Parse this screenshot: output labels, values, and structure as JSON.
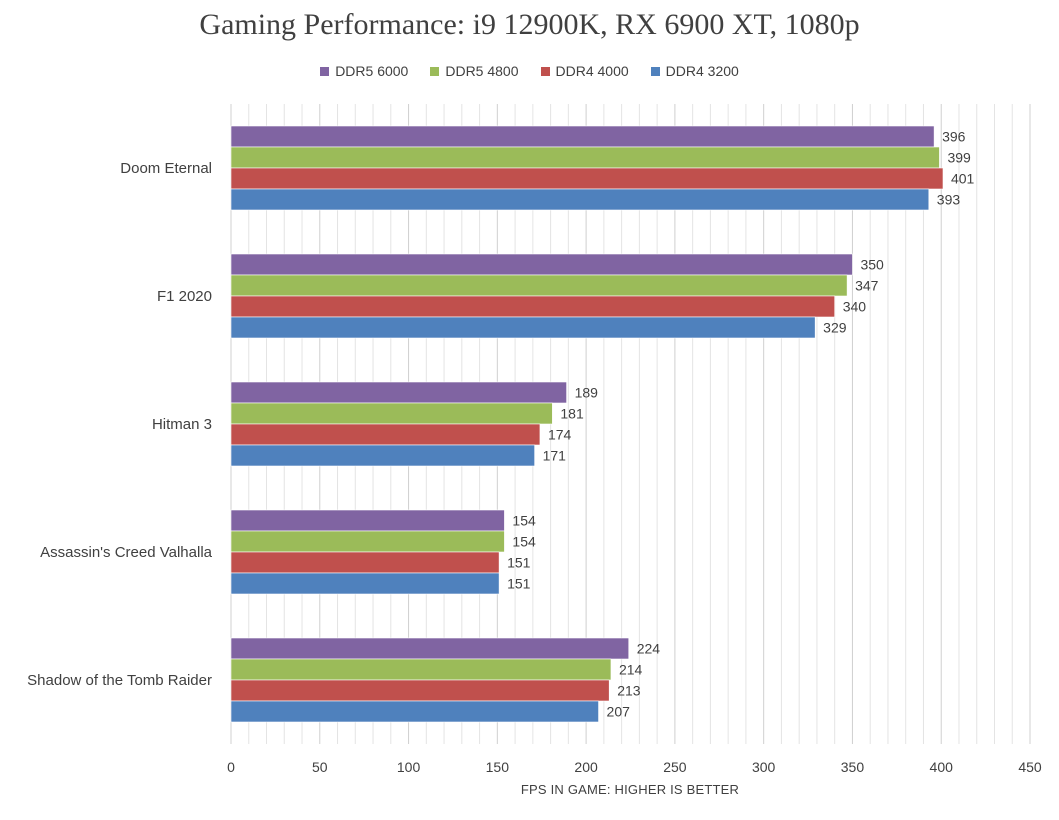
{
  "chart_data": {
    "type": "bar",
    "orientation": "horizontal",
    "title": "Gaming Performance: i9 12900K, RX 6900 XT, 1080p",
    "xlabel": "FPS IN GAME: HIGHER IS BETTER",
    "ylabel": "",
    "xlim": [
      0,
      450
    ],
    "xticks": [
      0,
      50,
      100,
      150,
      200,
      250,
      300,
      350,
      400,
      450
    ],
    "grid": true,
    "legend_position": "top",
    "categories": [
      "Doom Eternal",
      "F1 2020",
      "Hitman 3",
      "Assassin's Creed Valhalla",
      "Shadow of the Tomb Raider"
    ],
    "series": [
      {
        "name": "DDR5 6000",
        "color": "#8064a2",
        "values": [
          396,
          350,
          189,
          154,
          224
        ]
      },
      {
        "name": "DDR5 4800",
        "color": "#9bbb59",
        "values": [
          399,
          347,
          181,
          154,
          214
        ]
      },
      {
        "name": "DDR4 4000",
        "color": "#c0504d",
        "values": [
          401,
          340,
          174,
          151,
          213
        ]
      },
      {
        "name": "DDR4 3200",
        "color": "#4f81bd",
        "values": [
          393,
          329,
          171,
          151,
          207
        ]
      }
    ]
  }
}
